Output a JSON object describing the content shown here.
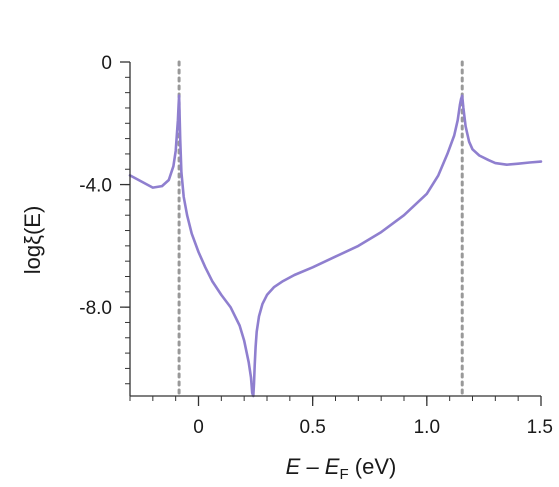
{
  "chart_data": {
    "type": "line",
    "xlabel": "E – E_F (eV)",
    "xlabel_parts": {
      "main": "E – E",
      "subscript": "F",
      "tail": " (eV)"
    },
    "ylabel": "logξ(E)",
    "xlim": [
      -0.3,
      1.5
    ],
    "ylim": [
      -10.9,
      0
    ],
    "xticks": [
      0,
      0.5,
      1.0,
      1.5
    ],
    "xtick_labels": [
      "0",
      "0.5",
      "1.0",
      "1.5"
    ],
    "yticks": [
      0,
      -4.0,
      -8.0
    ],
    "ytick_labels": [
      "0",
      "-4.0",
      "-8.0"
    ],
    "grid": false,
    "colors": {
      "series": "#8f7fcf",
      "reference_lines": "#999999",
      "axis": "#333333"
    },
    "reference_lines": [
      {
        "orientation": "vertical",
        "x": -0.085,
        "style": "dotted"
      },
      {
        "orientation": "vertical",
        "x": 1.155,
        "style": "dotted"
      }
    ],
    "series": [
      {
        "x": [
          -0.3,
          -0.25,
          -0.2,
          -0.16,
          -0.13,
          -0.11,
          -0.1,
          -0.095,
          -0.09,
          -0.087,
          -0.085,
          -0.083,
          -0.08,
          -0.075,
          -0.065,
          -0.05,
          -0.03,
          0.0,
          0.03,
          0.06,
          0.1,
          0.14,
          0.18,
          0.2,
          0.22,
          0.23,
          0.235,
          0.24,
          0.243,
          0.246,
          0.25,
          0.255,
          0.265,
          0.28,
          0.3,
          0.33,
          0.37,
          0.42,
          0.5,
          0.6,
          0.7,
          0.8,
          0.9,
          1.0,
          1.05,
          1.09,
          1.12,
          1.135,
          1.145,
          1.15,
          1.155,
          1.16,
          1.17,
          1.185,
          1.2,
          1.23,
          1.27,
          1.3,
          1.35,
          1.4,
          1.45,
          1.5
        ],
        "y": [
          -3.7,
          -3.9,
          -4.1,
          -4.05,
          -3.85,
          -3.4,
          -2.9,
          -2.4,
          -1.9,
          -1.4,
          -1.1,
          -1.6,
          -2.5,
          -3.6,
          -4.4,
          -5.0,
          -5.6,
          -6.2,
          -6.7,
          -7.15,
          -7.6,
          -8.0,
          -8.6,
          -9.1,
          -9.8,
          -10.3,
          -10.8,
          -10.9,
          -10.5,
          -9.9,
          -9.3,
          -8.8,
          -8.3,
          -7.9,
          -7.6,
          -7.35,
          -7.15,
          -6.95,
          -6.7,
          -6.35,
          -6.0,
          -5.55,
          -5.0,
          -4.3,
          -3.7,
          -3.0,
          -2.4,
          -1.9,
          -1.4,
          -1.2,
          -1.1,
          -1.5,
          -2.1,
          -2.6,
          -2.85,
          -3.05,
          -3.2,
          -3.3,
          -3.35,
          -3.32,
          -3.28,
          -3.25
        ]
      }
    ]
  }
}
